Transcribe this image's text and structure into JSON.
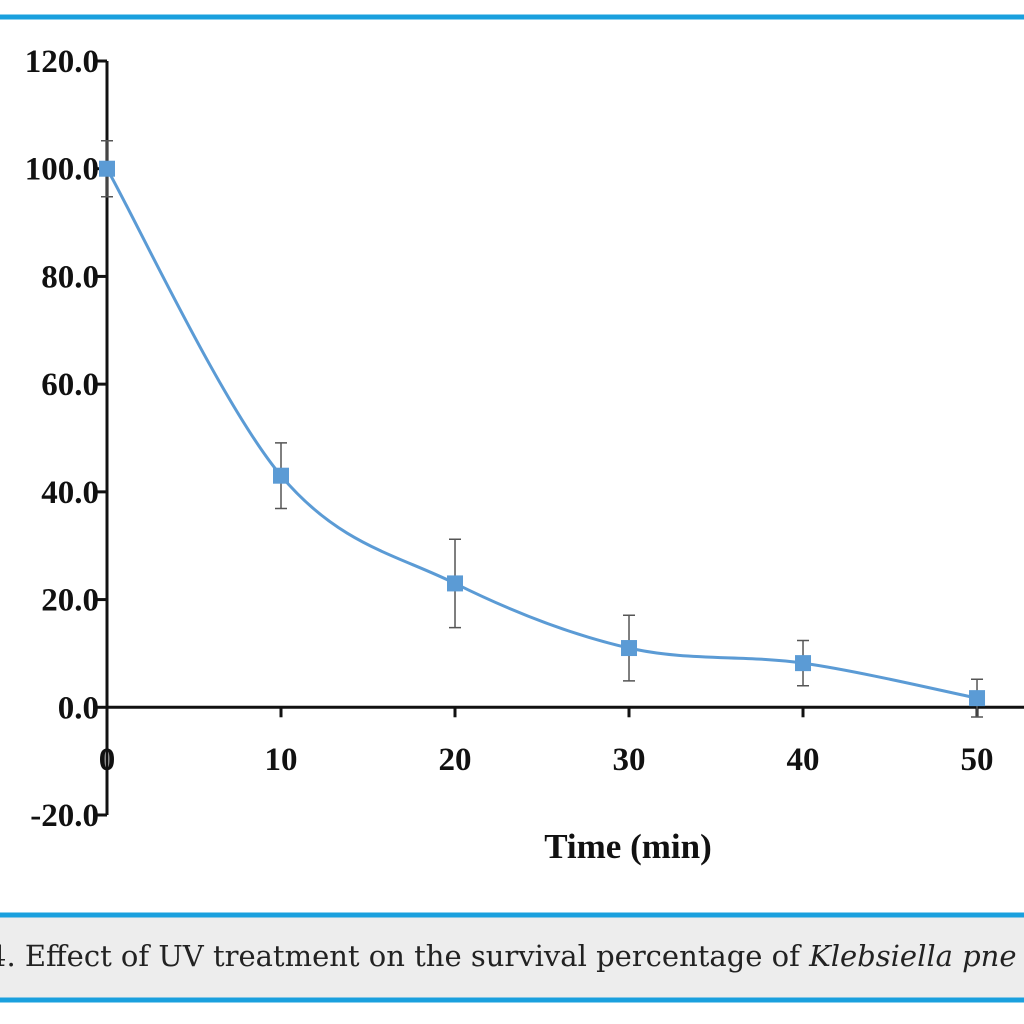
{
  "chart_data": {
    "type": "line",
    "x_label": "Time (min)",
    "caption": "4. Effect of UV treatment on the survival percentage of",
    "caption_italic": "Klebsiella pne",
    "x": [
      0,
      10,
      20,
      30,
      40,
      50
    ],
    "series": [
      {
        "color": "#5b9bd5",
        "values": [
          100,
          43,
          23,
          11,
          8.2,
          1.7
        ],
        "errors": [
          5.2,
          6.1,
          8.2,
          6.1,
          4.2,
          3.5
        ]
      }
    ],
    "xlim": [
      0,
      52.7
    ],
    "xticks": [
      0,
      10,
      20,
      30,
      40,
      50
    ],
    "ylim": [
      -20,
      120
    ],
    "yticks": [
      {
        "value": 120,
        "label": "120.0"
      },
      {
        "value": 100,
        "label": "100.0"
      },
      {
        "value": 80,
        "label": "80.0"
      },
      {
        "value": 60,
        "label": "60.0"
      },
      {
        "value": 40,
        "label": "40.0"
      },
      {
        "value": 20,
        "label": "20.0"
      },
      {
        "value": 0,
        "label": "0.0"
      },
      {
        "value": -20,
        "label": "-20.0"
      }
    ]
  }
}
